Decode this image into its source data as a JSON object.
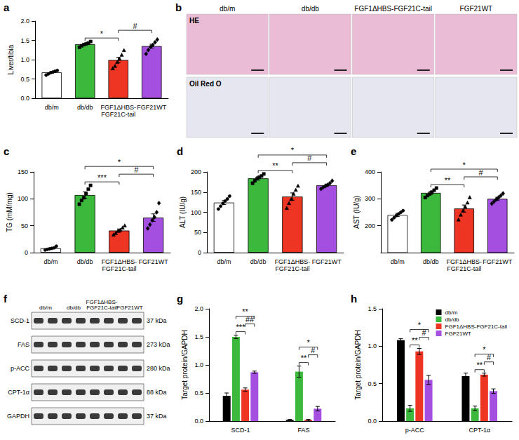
{
  "chart_data": [
    {
      "title": "a",
      "type": "bar",
      "categories": [
        "db/m",
        "db/db",
        "FGF1ΔHBS-FGF21C-tail",
        "FGF21WT"
      ],
      "values": [
        0.67,
        1.4,
        0.99,
        1.35
      ],
      "errors": [
        0.02,
        0.02,
        0.07,
        0.05
      ],
      "colors": [
        "#ffffff",
        "#3cb93c",
        "#ee3524",
        "#a44fe0"
      ],
      "points": [
        {
          "marker": "circle",
          "values": [
            0.6,
            0.63,
            0.66,
            0.68,
            0.7,
            0.72
          ]
        },
        {
          "marker": "square",
          "values": [
            1.32,
            1.36,
            1.39,
            1.41,
            1.43,
            1.47
          ]
        },
        {
          "marker": "triangle",
          "values": [
            0.77,
            0.83,
            0.93,
            1.02,
            1.12,
            1.24
          ]
        },
        {
          "marker": "diamond",
          "values": [
            1.15,
            1.25,
            1.33,
            1.38,
            1.45,
            1.52
          ]
        }
      ],
      "ylabel": "Liver/tibia",
      "ylim": [
        0,
        2
      ],
      "yticks": [
        {
          "value": 0,
          "label": "0.0"
        },
        0.5,
        {
          "value": 1,
          "label": "1.0"
        },
        1.5,
        {
          "value": 2,
          "label": "2.0"
        }
      ],
      "annotations": [
        {
          "from": 1,
          "to": 2,
          "label": "*"
        },
        {
          "from": 2,
          "to": 3,
          "label": "#"
        }
      ]
    },
    {
      "title": "c",
      "type": "bar",
      "categories": [
        "db/m",
        "db/db",
        "FGF1ΔHBS-FGF21C-tail",
        "FGF21WT"
      ],
      "values": [
        8,
        107,
        41,
        65
      ],
      "errors": [
        1,
        6,
        3,
        7
      ],
      "colors": [
        "#ffffff",
        "#3cb93c",
        "#ee3524",
        "#a44fe0"
      ],
      "points": [
        {
          "marker": "circle",
          "values": [
            5,
            6,
            7,
            8,
            9,
            12
          ]
        },
        {
          "marker": "square",
          "values": [
            90,
            97,
            102,
            110,
            118,
            125
          ]
        },
        {
          "marker": "triangle",
          "values": [
            33,
            36,
            40,
            42,
            46,
            50
          ]
        },
        {
          "marker": "diamond",
          "values": [
            45,
            52,
            60,
            66,
            75,
            92
          ]
        }
      ],
      "ylabel": "TG (mM/mg)",
      "ylim": [
        0,
        150
      ],
      "yticks": [
        0,
        50,
        100,
        150
      ],
      "annotations": [
        {
          "from": 1,
          "to": 2,
          "label": "***"
        },
        {
          "from": 1,
          "to": 3,
          "label": "*"
        },
        {
          "from": 2,
          "to": 3,
          "label": "#"
        }
      ]
    },
    {
      "title": "d",
      "type": "bar",
      "categories": [
        "db/m",
        "db/db",
        "FGF1ΔHBS-FGF21C-tail",
        "FGF21WT"
      ],
      "values": [
        124,
        184,
        139,
        167
      ],
      "errors": [
        5,
        4,
        9,
        3
      ],
      "colors": [
        "#ffffff",
        "#3cb93c",
        "#ee3524",
        "#a44fe0"
      ],
      "points": [
        {
          "marker": "circle",
          "values": [
            108,
            115,
            122,
            128,
            133,
            140
          ]
        },
        {
          "marker": "square",
          "values": [
            172,
            178,
            183,
            187,
            190,
            195
          ]
        },
        {
          "marker": "triangle",
          "values": [
            110,
            122,
            132,
            145,
            155,
            165
          ]
        },
        {
          "marker": "diamond",
          "values": [
            158,
            162,
            165,
            168,
            172,
            178
          ]
        }
      ],
      "ylabel": "ALT (IU/g)",
      "ylim": [
        0,
        200
      ],
      "yticks": [
        0,
        50,
        100,
        150,
        200
      ],
      "annotations": [
        {
          "from": 1,
          "to": 2,
          "label": "**"
        },
        {
          "from": 1,
          "to": 3,
          "label": "*"
        },
        {
          "from": 2,
          "to": 3,
          "label": "#"
        }
      ]
    },
    {
      "title": "e",
      "type": "bar",
      "categories": [
        "db/m",
        "db/db",
        "FGF1ΔHBS-FGF21C-tail",
        "FGF21WT"
      ],
      "values": [
        240,
        322,
        264,
        300
      ],
      "errors": [
        6,
        6,
        13,
        6
      ],
      "colors": [
        "#ffffff",
        "#3cb93c",
        "#ee3524",
        "#a44fe0"
      ],
      "points": [
        {
          "marker": "circle",
          "values": [
            222,
            230,
            238,
            244,
            250,
            256
          ]
        },
        {
          "marker": "square",
          "values": [
            305,
            312,
            318,
            325,
            332,
            340
          ]
        },
        {
          "marker": "triangle",
          "values": [
            222,
            240,
            255,
            270,
            285,
            305
          ]
        },
        {
          "marker": "diamond",
          "values": [
            282,
            290,
            298,
            305,
            312,
            320
          ]
        }
      ],
      "ylabel": "AST (IU/g)",
      "ylim": [
        100,
        400
      ],
      "yticks": [
        200,
        300,
        400
      ],
      "annotations": [
        {
          "from": 1,
          "to": 2,
          "label": "**"
        },
        {
          "from": 1,
          "to": 3,
          "label": "*"
        },
        {
          "from": 2,
          "to": 3,
          "label": "#"
        }
      ]
    },
    {
      "title": "g",
      "type": "bar",
      "categories": [
        "SCD-1",
        "FAS"
      ],
      "series": [
        {
          "color": "#000000",
          "values": [
            0.45,
            0.02
          ],
          "errors": [
            0.05,
            0.01
          ]
        },
        {
          "color": "#3cb93c",
          "values": [
            1.5,
            0.88
          ],
          "errors": [
            0.03,
            0.1
          ]
        },
        {
          "color": "#ee3524",
          "values": [
            0.56,
            0.02
          ],
          "errors": [
            0.03,
            0.01
          ]
        },
        {
          "color": "#a44fe0",
          "values": [
            0.87,
            0.22
          ],
          "errors": [
            0.02,
            0.04
          ]
        }
      ],
      "ylabel": "Target protein/GAPDH",
      "ylim": [
        0,
        2
      ],
      "yticks": [
        {
          "value": 0,
          "label": "0.0"
        },
        0.5,
        {
          "value": 1,
          "label": "1.0"
        },
        1.5,
        {
          "value": 2,
          "label": "2.0"
        }
      ],
      "annotations": [
        {
          "category": 0,
          "from": 1,
          "to": 2,
          "label": "***"
        },
        {
          "category": 0,
          "from": 1,
          "to": 3,
          "label": "**"
        },
        {
          "category": 0,
          "from": 2,
          "to": 3,
          "label": "##"
        },
        {
          "category": 1,
          "from": 1,
          "to": 2,
          "label": "**"
        },
        {
          "category": 1,
          "from": 1,
          "to": 3,
          "label": "*"
        },
        {
          "category": 1,
          "from": 2,
          "to": 3,
          "label": "#"
        }
      ]
    },
    {
      "title": "h",
      "type": "bar",
      "categories": [
        "p-ACC",
        "CPT-1α"
      ],
      "series": [
        {
          "name": "db/m",
          "color": "#000000",
          "values": [
            1.08,
            0.6
          ],
          "errors": [
            0.02,
            0.04
          ]
        },
        {
          "name": "db/db",
          "color": "#3cb93c",
          "values": [
            0.17,
            0.17
          ],
          "errors": [
            0.04,
            0.03
          ]
        },
        {
          "name": "FGF1ΔHBS-FGF21C-tail",
          "color": "#ee3524",
          "values": [
            0.93,
            0.62
          ],
          "errors": [
            0.04,
            0.02
          ]
        },
        {
          "name": "FGF21WT",
          "color": "#a44fe0",
          "values": [
            0.55,
            0.4
          ],
          "errors": [
            0.06,
            0.03
          ]
        }
      ],
      "ylabel": "Target protein/GAPDH",
      "ylim": [
        0,
        1.5
      ],
      "yticks": [
        {
          "value": 0,
          "label": "0.0"
        },
        0.5,
        {
          "value": 1,
          "label": "1.0"
        },
        1.5
      ],
      "legend": "upper right",
      "annotations": [
        {
          "category": 0,
          "from": 1,
          "to": 2,
          "label": "**"
        },
        {
          "category": 0,
          "from": 1,
          "to": 3,
          "label": "*"
        },
        {
          "category": 0,
          "from": 2,
          "to": 3,
          "label": "#"
        },
        {
          "category": 1,
          "from": 1,
          "to": 2,
          "label": "**"
        },
        {
          "category": 1,
          "from": 1,
          "to": 3,
          "label": "*"
        },
        {
          "category": 1,
          "from": 2,
          "to": 3,
          "label": "#"
        }
      ]
    }
  ],
  "images": {
    "title": "b",
    "columns": [
      "db/m",
      "db/db",
      "FGF1ΔHBS-FGF21C-tail",
      "FGF21WT"
    ],
    "rows": [
      "HE",
      "Oil Red O"
    ]
  },
  "blot": {
    "title": "f",
    "columns": [
      "db/m",
      "db/db",
      "FGF1ΔHBS-FGF21C-tail",
      "FGF21WT"
    ],
    "rows": [
      {
        "protein": "SCD-1",
        "size": "37 kDa"
      },
      {
        "protein": "FAS",
        "size": "273 kDa"
      },
      {
        "protein": "p-ACC",
        "size": "280 kDa"
      },
      {
        "protein": "CPT-1α",
        "size": "88 kDa"
      },
      {
        "protein": "GAPDH",
        "size": "37 kDa"
      }
    ]
  }
}
